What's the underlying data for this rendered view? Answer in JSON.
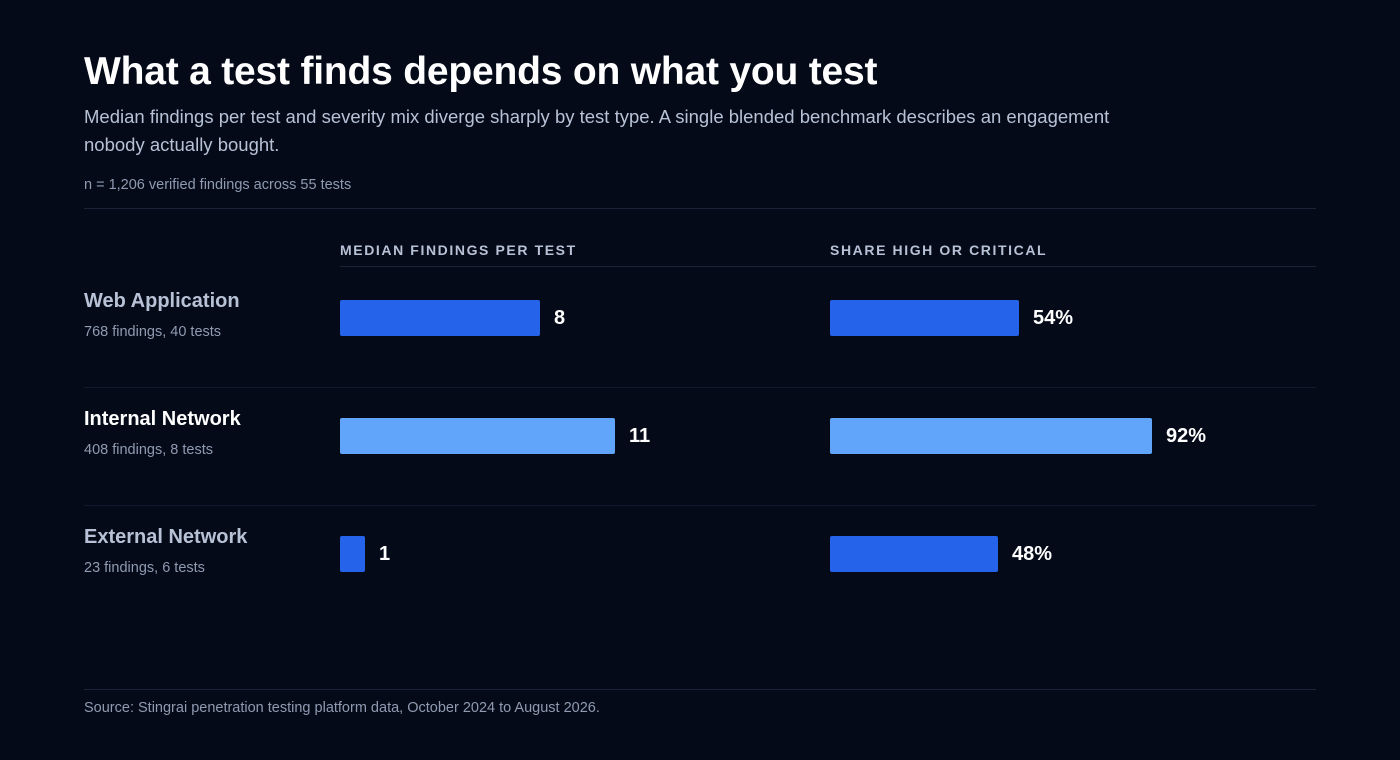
{
  "header": {
    "title": "What a test finds depends on what you test",
    "subtitle": "Median findings per test and severity mix diverge sharply by test type. A single blended benchmark describes an engagement nobody actually bought.",
    "sample_note": "n = 1,206 verified findings across 55 tests"
  },
  "footer": {
    "source": "Source: Stingrai penetration testing platform data, October 2024 to August 2026."
  },
  "colors": {
    "background": "#050a18",
    "bar_default": "#2563eb",
    "bar_highlight": "#60a5fa",
    "label_highlight": "#ffffff",
    "label_default": "#b7c2d6"
  },
  "chart_data": [
    {
      "type": "bar",
      "orientation": "horizontal",
      "title": "MEDIAN FINDINGS PER TEST",
      "categories": [
        "Web Application",
        "Internal Network",
        "External Network"
      ],
      "category_notes": [
        "768 findings, 40 tests",
        "408 findings, 8 tests",
        "23 findings, 6 tests"
      ],
      "values": [
        8,
        11,
        1
      ],
      "value_labels": [
        "8",
        "11",
        "1"
      ],
      "highlighted": [
        false,
        true,
        false
      ],
      "xlim": [
        0,
        11
      ],
      "grid": false,
      "legend": "none"
    },
    {
      "type": "bar",
      "orientation": "horizontal",
      "title": "SHARE HIGH OR CRITICAL",
      "categories": [
        "Web Application",
        "Internal Network",
        "External Network"
      ],
      "values": [
        54,
        92,
        48
      ],
      "value_labels": [
        "54%",
        "92%",
        "48%"
      ],
      "unit": "%",
      "highlighted": [
        false,
        true,
        false
      ],
      "xlim": [
        0,
        92
      ],
      "grid": false,
      "legend": "none"
    }
  ]
}
